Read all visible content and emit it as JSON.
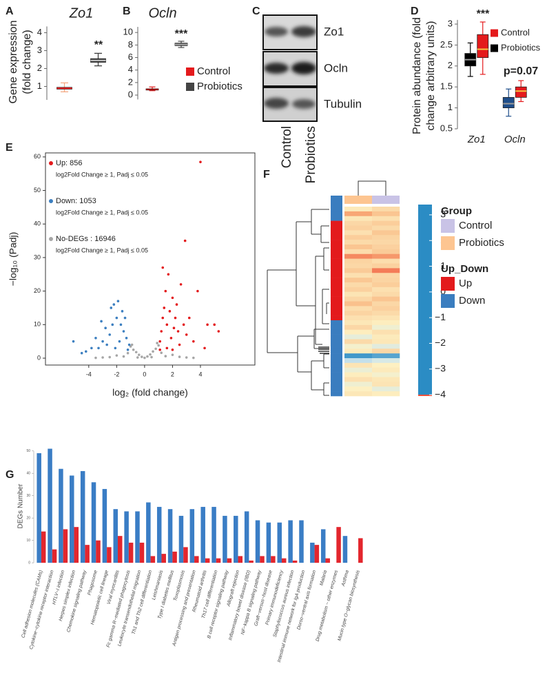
{
  "chart_data": [
    {
      "type": "box",
      "label": "A",
      "title": "Zo1",
      "ylabel": [
        "Gene expression",
        "(fold change)"
      ],
      "categories": [
        null
      ],
      "series": [
        {
          "color": "#f6a57c",
          "median_color": "#e41a1c",
          "min": [
            0.7
          ],
          "q1": [
            0.85
          ],
          "median": [
            0.9
          ],
          "q3": [
            0.95
          ],
          "max": [
            1.2
          ]
        },
        {
          "color": "#333333",
          "median_color": "#cccccc",
          "min": [
            2.15
          ],
          "q1": [
            2.35
          ],
          "median": [
            2.45
          ],
          "q3": [
            2.55
          ],
          "max": [
            2.85
          ]
        }
      ],
      "ylim": [
        0.25,
        4.35
      ],
      "yticks": [
        1,
        2,
        3,
        4
      ],
      "annotations": [
        "**"
      ]
    },
    {
      "type": "box",
      "label": "B",
      "title": "Ocln",
      "categories": [
        null
      ],
      "legend": true,
      "series": [
        {
          "name": "Control",
          "color": "#e41a1c",
          "median_color": "#a00000",
          "min": [
            0.7
          ],
          "q1": [
            0.8
          ],
          "median": [
            0.9
          ],
          "q3": [
            1.0
          ],
          "max": [
            1.3
          ]
        },
        {
          "name": "Probiotics",
          "color": "#444444",
          "median_color": "#aaaaaa",
          "min": [
            7.6
          ],
          "q1": [
            7.9
          ],
          "median": [
            8.1
          ],
          "q3": [
            8.3
          ],
          "max": [
            8.6
          ]
        }
      ],
      "ylim": [
        -0.7,
        10.9
      ],
      "yticks": [
        0,
        2,
        4,
        6,
        8,
        10
      ],
      "annotations": [
        "***"
      ]
    },
    {
      "type": "box",
      "label": "D",
      "ylabel": [
        "Protein abundance (fold",
        "change arbitrary units)"
      ],
      "categories": [
        "Zo1",
        "Ocln"
      ],
      "legend": true,
      "series": [
        {
          "name": "Control",
          "color": "#e41a1c",
          "median_color": "#f5c542",
          "min": [
            1.8,
            1.15
          ],
          "q1": [
            2.2,
            1.25
          ],
          "median": [
            2.4,
            1.4
          ],
          "q3": [
            2.75,
            1.5
          ],
          "max": [
            3.05,
            1.65
          ]
        },
        {
          "name": "Probiotics",
          "color": "#000000",
          "box_colors": [
            "#000000",
            "#1f4e8a"
          ],
          "median_color": "#999999",
          "min": [
            1.75,
            0.8
          ],
          "q1": [
            2.0,
            1.0
          ],
          "median": [
            2.15,
            1.1
          ],
          "q3": [
            2.3,
            1.25
          ],
          "max": [
            2.55,
            1.45
          ]
        }
      ],
      "ylim": [
        0.5,
        3.1
      ],
      "yticks": [
        0.5,
        1,
        1.5,
        2,
        2.5,
        3
      ],
      "annotations": [
        "***",
        "p=0.07"
      ]
    },
    {
      "type": "scatter",
      "label": "E",
      "xlabel": "log₂ (fold change)",
      "ylabel": "−log₁₀ (Padj)",
      "xlim": [
        -7.1,
        7.9
      ],
      "ylim": [
        -2.05,
        61.2
      ],
      "xticks": [
        -4,
        -2,
        0,
        2,
        4
      ],
      "yticks": [
        0,
        10,
        20,
        30,
        40,
        50,
        60
      ],
      "series": [
        {
          "name": "Up: 856",
          "note": "log2Fold Change ≥ 1, Padj ≤ 0.05",
          "color": "#e31a1c",
          "x": [
            1.1,
            1.2,
            1.3,
            1.4,
            1.5,
            1.6,
            1.8,
            2.0,
            2.2,
            2.4,
            2.6,
            1.7,
            1.9,
            2.1,
            1.3,
            2.3,
            2.8,
            3.0,
            3.2,
            2.5,
            1.6,
            2.0,
            3.5,
            4.0,
            2.9,
            1.1,
            4.5,
            5.3,
            5.0,
            3.8,
            4.3
          ],
          "values": [
            5,
            8,
            12,
            15,
            20,
            10,
            14,
            18,
            12,
            8,
            22,
            25,
            6,
            9,
            27,
            16,
            10,
            7,
            12,
            4,
            3,
            2.5,
            5,
            58.5,
            35,
            2.5,
            10,
            8,
            10,
            20,
            3
          ]
        },
        {
          "name": "Down: 1053",
          "note": "log2Fold Change ≥ 1, Padj ≤ 0.05",
          "color": "#3c7fc0",
          "x": [
            -1.1,
            -1.3,
            -1.5,
            -1.7,
            -2.0,
            -2.2,
            -2.5,
            -2.8,
            -3.0,
            -3.3,
            -3.5,
            -1.9,
            -2.4,
            -1.4,
            -1.2,
            -2.1,
            -2.7,
            -3.1,
            -3.8,
            -4.2,
            -5.1,
            -4.5,
            -1.6,
            -2.3,
            -1.8
          ],
          "values": [
            4,
            6,
            8,
            10,
            12,
            16,
            7,
            9,
            5,
            3,
            6,
            17,
            15,
            12,
            2.5,
            3,
            4,
            11,
            3,
            2,
            5,
            1.5,
            14,
            10,
            5
          ]
        },
        {
          "name": "No-DEGs : 16946",
          "note": "log2Fold Change ≥ 1, Padj ≤ 0.05",
          "color": "#a6a6a6",
          "x": [
            -1.0,
            -0.8,
            -0.6,
            -0.4,
            -0.2,
            0,
            0.2,
            0.4,
            0.6,
            0.8,
            1.0,
            -1.5,
            -2.5,
            -3.0,
            1.5,
            2.5,
            3.0,
            -1.2,
            1.2,
            0.9,
            -0.9,
            2.0,
            -2.0,
            0.5,
            -0.5,
            3.5,
            -3.5
          ],
          "values": [
            3.5,
            2.5,
            1.8,
            1,
            0.4,
            0.1,
            0.5,
            1.1,
            2,
            2.8,
            3.8,
            0.5,
            0.3,
            0.2,
            0.6,
            0.4,
            0.2,
            1.5,
            1.6,
            4.5,
            4,
            1,
            0.8,
            0.3,
            0.2,
            0.1,
            0.1
          ]
        }
      ]
    },
    {
      "type": "heatmap",
      "label": "F",
      "column_groups": [
        "Probiotics",
        "Control"
      ],
      "row_groups": [
        "Down",
        "Down",
        "Down",
        "Up",
        "Up",
        "Up",
        "Up",
        "Up",
        "Up",
        "Up",
        "Up",
        "Up",
        "Up",
        "Up",
        "Up",
        "Up",
        "Up",
        "Up",
        "Up",
        "Up",
        "Up",
        "Up",
        "Up",
        "Up",
        "Down",
        "Down",
        "Down",
        "Down",
        "Down",
        "Down",
        "Down",
        "Down",
        "Down",
        "Down",
        "Down",
        "Down",
        "Down",
        "Down",
        "Down",
        "Down"
      ],
      "values": [
        [
          0.3,
          0.8
        ],
        [
          2.2,
          1.5
        ],
        [
          0.4,
          0.6
        ],
        [
          0.9,
          1.2
        ],
        [
          1.1,
          0.8
        ],
        [
          0.6,
          1.4
        ],
        [
          1.2,
          1.0
        ],
        [
          0.8,
          0.9
        ],
        [
          1.5,
          1.1
        ],
        [
          0.7,
          1.3
        ],
        [
          2.6,
          2.4
        ],
        [
          1.0,
          0.7
        ],
        [
          0.9,
          1.1
        ],
        [
          1.3,
          2.8
        ],
        [
          0.6,
          0.9
        ],
        [
          1.4,
          1.0
        ],
        [
          0.8,
          1.2
        ],
        [
          1.1,
          0.6
        ],
        [
          0.5,
          0.8
        ],
        [
          0.9,
          1.5
        ],
        [
          1.6,
          0.9
        ],
        [
          0.7,
          1.1
        ],
        [
          1.0,
          0.8
        ],
        [
          0.6,
          0.5
        ],
        [
          0.4,
          0.2
        ],
        [
          0.9,
          -0.3
        ],
        [
          0.2,
          0.6
        ],
        [
          -0.5,
          0.3
        ],
        [
          0.8,
          0.4
        ],
        [
          -0.2,
          -0.6
        ],
        [
          0.3,
          0.9
        ],
        [
          -3.6,
          -3.2
        ],
        [
          -1.2,
          -0.8
        ],
        [
          0.5,
          0.1
        ],
        [
          -0.4,
          0.3
        ],
        [
          0.2,
          -0.2
        ],
        [
          0.6,
          0.4
        ],
        [
          -0.3,
          0.5
        ],
        [
          0.1,
          -0.5
        ],
        [
          0.4,
          0.2
        ]
      ],
      "colorscale": [
        [
          -4,
          "#2b8cc4"
        ],
        [
          -1,
          "#cfe6ee"
        ],
        [
          0,
          "#fdf3c5"
        ],
        [
          2,
          "#f9b57f"
        ],
        [
          3.4,
          "#f0503a"
        ]
      ],
      "zlim": [
        -4.05,
        3.4
      ],
      "zticks": [
        3,
        2,
        1,
        0,
        {
          "value": -1,
          "label": "−1"
        },
        {
          "value": -2,
          "label": "−2"
        },
        {
          "value": -3,
          "label": "−3"
        },
        {
          "value": -4,
          "label": "−4"
        }
      ],
      "group_legend": {
        "title": "Group",
        "items": [
          {
            "name": "Control",
            "color": "#c9c3e6"
          },
          {
            "name": "Probiotics",
            "color": "#fdc591"
          }
        ]
      },
      "row_legend": {
        "title": "Up_Down",
        "items": [
          {
            "name": "Up",
            "color": "#e31a1c"
          },
          {
            "name": "Down",
            "color": "#3a7dbf"
          }
        ]
      }
    },
    {
      "type": "bar",
      "label": "G",
      "ylabel": "DEGs Number",
      "ylim": [
        -1.5,
        53
      ],
      "yticks": [
        0,
        10,
        20,
        30,
        40,
        50
      ],
      "categories": [
        "Cell adhesion molecules (CAMs)",
        "Cytokine−cytokine receptor interaction",
        "HTLV−I infection",
        "Herpes simplex infection",
        "Chemokine signaling pathway",
        "Phagosome",
        "Hematopoietic cell lineage",
        "Viral myocarditis",
        "Fc gamma R−mediated phagocytosis",
        "Leukocyte transendothelial migration",
        "Th1 and Th2 cell differentiation",
        "Leishmaniasis",
        "Type I diabetes mellitus",
        "Toxoplasmosis",
        "Antigen processing and presentation",
        "Rheumatoid arthritis",
        "Th17 cell differentiation",
        "B cell receptor signaling pathway",
        "Allograft rejection",
        "Inflammatory bowel disease (IBD)",
        "NF−kappa B signaling pathway",
        "Graft−versus−host disease",
        "Primary immunodeficiency",
        "Staphylococcus aureus infection",
        "Intestinal immune network for IgA production",
        "Dorso−ventral axis formation",
        "Malaria",
        "Drug metabolism − other enzymes",
        "Asthma",
        "Mucin type O−glycan biosynthesis"
      ],
      "series": [
        {
          "color": "#3a7dc5",
          "values": [
            49,
            51,
            42,
            39,
            41,
            36,
            33,
            24,
            23,
            23,
            27,
            25,
            24,
            21,
            24,
            25,
            25,
            21,
            21,
            23,
            19,
            18,
            18,
            19,
            19,
            9,
            15,
            null,
            12,
            null
          ]
        },
        {
          "color": "#e3262d",
          "values": [
            14,
            6,
            15,
            16,
            8,
            10,
            7,
            12,
            9,
            9,
            3,
            4,
            5,
            7,
            3,
            2,
            2,
            2,
            3,
            1,
            3,
            3,
            2,
            1,
            null,
            8,
            2,
            16,
            null,
            11
          ]
        }
      ]
    }
  ],
  "blot": {
    "label": "C",
    "rows": [
      "Zo1",
      "Ocln",
      "Tubulin"
    ],
    "columns": [
      "Control",
      "Probiotics"
    ]
  }
}
